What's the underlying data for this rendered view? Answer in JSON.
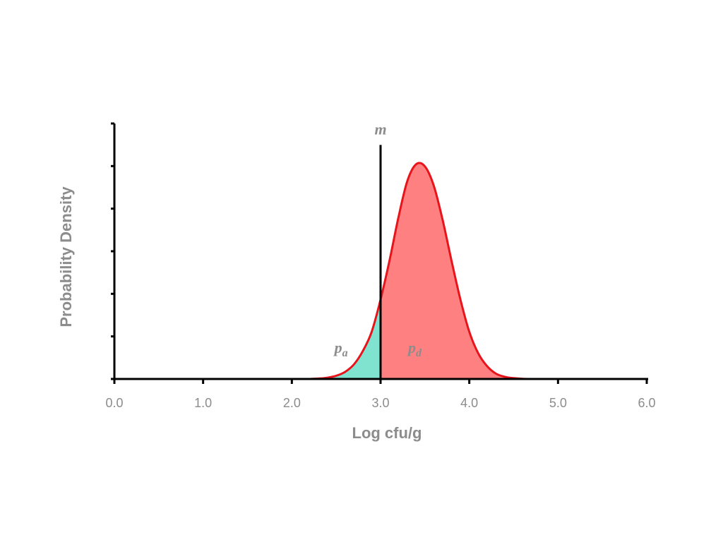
{
  "chart_data": {
    "type": "area",
    "title": "",
    "xlabel": "Log cfu/g",
    "ylabel": "Probability Density",
    "xlim": [
      0,
      6
    ],
    "ylim": [
      0,
      1.19
    ],
    "x_ticks": [
      "0.0",
      "1.0",
      "2.0",
      "3.0",
      "4.0",
      "5.0",
      "6.0"
    ],
    "y_tick_count": 6,
    "y_tick_labels_shown": false,
    "grid": false,
    "legend": "none",
    "distribution": {
      "points": [
        [
          2.2,
          0.0
        ],
        [
          2.3,
          0.002
        ],
        [
          2.4,
          0.006
        ],
        [
          2.5,
          0.015
        ],
        [
          2.6,
          0.033
        ],
        [
          2.7,
          0.068
        ],
        [
          2.8,
          0.13
        ],
        [
          2.9,
          0.22
        ],
        [
          3.0,
          0.37
        ],
        [
          3.1,
          0.55
        ],
        [
          3.2,
          0.75
        ],
        [
          3.3,
          0.92
        ],
        [
          3.4,
          1.0
        ],
        [
          3.5,
          0.99
        ],
        [
          3.6,
          0.9
        ],
        [
          3.7,
          0.74
        ],
        [
          3.8,
          0.55
        ],
        [
          3.9,
          0.37
        ],
        [
          4.0,
          0.22
        ],
        [
          4.1,
          0.12
        ],
        [
          4.2,
          0.06
        ],
        [
          4.3,
          0.025
        ],
        [
          4.4,
          0.01
        ],
        [
          4.5,
          0.004
        ],
        [
          4.6,
          0.001
        ],
        [
          4.7,
          0.0
        ]
      ],
      "line_color": "#e8141b",
      "fill_below_limit": "#7fe3cf",
      "fill_above_limit": "#ff8080"
    },
    "limit_line": {
      "x": 3.0,
      "y_top": 1.09,
      "label": "m",
      "color": "#000000"
    },
    "region_labels": [
      {
        "main": "p",
        "sub": "a",
        "region": "below limit"
      },
      {
        "main": "p",
        "sub": "d",
        "region": "above limit"
      }
    ]
  }
}
